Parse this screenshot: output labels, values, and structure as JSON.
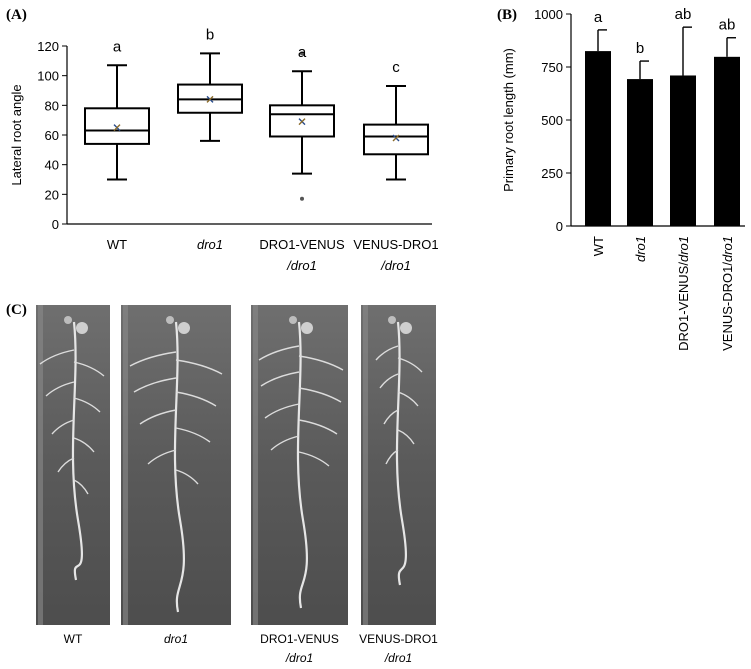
{
  "panels": {
    "A": "(A)",
    "B": "(B)",
    "C": "(C)"
  },
  "chart_data": [
    {
      "type": "box",
      "ylabel": "Lateral root angle",
      "ylim": [
        0,
        120
      ],
      "yticks": [
        0,
        20,
        40,
        60,
        80,
        100,
        120
      ],
      "grid": false,
      "categories": [
        {
          "line1": "WT",
          "line1_italic": false,
          "line2": ""
        },
        {
          "line1": "dro1",
          "line1_italic": true,
          "line2": ""
        },
        {
          "line1": "DRO1-VENUS",
          "line1_italic": false,
          "line2": "/dro1"
        },
        {
          "line1": "VENUS-DRO1",
          "line1_italic": false,
          "line2": "/dro1"
        }
      ],
      "boxes": [
        {
          "min": 30,
          "q1": 54,
          "median": 63,
          "q3": 78,
          "max": 107,
          "mean": 65,
          "outliers": [],
          "letter": "a"
        },
        {
          "min": 56,
          "q1": 75,
          "median": 84,
          "q3": 94,
          "max": 115,
          "mean": 84,
          "outliers": [],
          "letter": "b"
        },
        {
          "min": 34,
          "q1": 59,
          "median": 74,
          "q3": 80,
          "max": 103,
          "mean": 69,
          "outliers": [
            115,
            17
          ],
          "letter": "a"
        },
        {
          "min": 30,
          "q1": 47,
          "median": 59,
          "q3": 67,
          "max": 93,
          "mean": 58,
          "outliers": [],
          "letter": "c"
        }
      ],
      "mean_marker": "x"
    },
    {
      "type": "bar",
      "ylabel": "Primary root length (mm)",
      "ylim": [
        0,
        1000
      ],
      "yticks": [
        0,
        250,
        500,
        750,
        1000
      ],
      "grid": false,
      "categories": [
        {
          "text": "WT",
          "italic_part": ""
        },
        {
          "text": "",
          "italic_part": "dro1"
        },
        {
          "text": "DRO1-VENUS/",
          "italic_part": "dro1"
        },
        {
          "text": "VENUS-DRO1/",
          "italic_part": "dro1"
        }
      ],
      "values": [
        825,
        693,
        710,
        798
      ],
      "errors": [
        100,
        85,
        228,
        90
      ],
      "letters": [
        "a",
        "b",
        "ab",
        "ab"
      ],
      "bar_color": "#000000"
    }
  ],
  "photos": [
    {
      "line1": "WT",
      "line1_italic": false,
      "line2": ""
    },
    {
      "line1": "dro1",
      "line1_italic": true,
      "line2": ""
    },
    {
      "line1": "DRO1-VENUS",
      "line1_italic": false,
      "line2": "/dro1"
    },
    {
      "line1": "VENUS-DRO1",
      "line1_italic": false,
      "line2": "/dro1"
    }
  ]
}
